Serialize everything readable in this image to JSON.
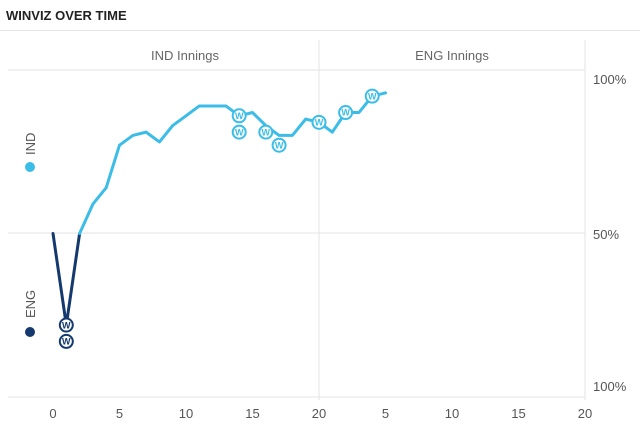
{
  "title": "WINVIZ OVER TIME",
  "chart_data": {
    "type": "line",
    "sections": [
      "IND Innings",
      "ENG Innings"
    ],
    "x_ticks": [
      "0",
      "5",
      "10",
      "15",
      "20",
      "5",
      "10",
      "15",
      "20"
    ],
    "y_labels": {
      "top": "100%",
      "mid": "50%",
      "bottom": "100%"
    },
    "teams": [
      {
        "name": "IND",
        "color": "#3bbde8"
      },
      {
        "name": "ENG",
        "color": "#14396e"
      }
    ],
    "x_range": [
      -3,
      20
    ],
    "y_range": [
      0,
      100
    ],
    "ind_series": {
      "name": "IND",
      "color": "#3bbde8",
      "points": [
        [
          2,
          50
        ],
        [
          3,
          59
        ],
        [
          4,
          64
        ],
        [
          5,
          77
        ],
        [
          6,
          80
        ],
        [
          7,
          81
        ],
        [
          8,
          78
        ],
        [
          9,
          83
        ],
        [
          10,
          86
        ],
        [
          11,
          89
        ],
        [
          12,
          89
        ],
        [
          13,
          89
        ],
        [
          14,
          86
        ],
        [
          15,
          87
        ],
        [
          16,
          83
        ],
        [
          17,
          80
        ],
        [
          18,
          80
        ],
        [
          19,
          85
        ],
        [
          20,
          84
        ],
        [
          21,
          81
        ],
        [
          22,
          87
        ],
        [
          23,
          87
        ],
        [
          24,
          92
        ],
        [
          25,
          93
        ]
      ]
    },
    "eng_series": {
      "name": "ENG",
      "color": "#14396e",
      "points": [
        [
          0,
          50
        ],
        [
          1,
          22
        ],
        [
          2,
          50
        ]
      ]
    },
    "wickets": [
      {
        "x": 14,
        "y": 86,
        "team": "IND",
        "label": "W"
      },
      {
        "x": 14,
        "y": 81,
        "team": "IND",
        "label": "W"
      },
      {
        "x": 16,
        "y": 81,
        "team": "IND",
        "label": "W"
      },
      {
        "x": 17,
        "y": 77,
        "team": "IND",
        "label": "W"
      },
      {
        "x": 20,
        "y": 84,
        "team": "IND",
        "label": "W"
      },
      {
        "x": 22,
        "y": 87,
        "team": "IND",
        "label": "W"
      },
      {
        "x": 24,
        "y": 92,
        "team": "IND",
        "label": "W"
      },
      {
        "x": 1,
        "y": 22,
        "team": "ENG",
        "label": "W"
      },
      {
        "x": 1,
        "y": 17,
        "team": "ENG",
        "label": "W"
      }
    ]
  }
}
